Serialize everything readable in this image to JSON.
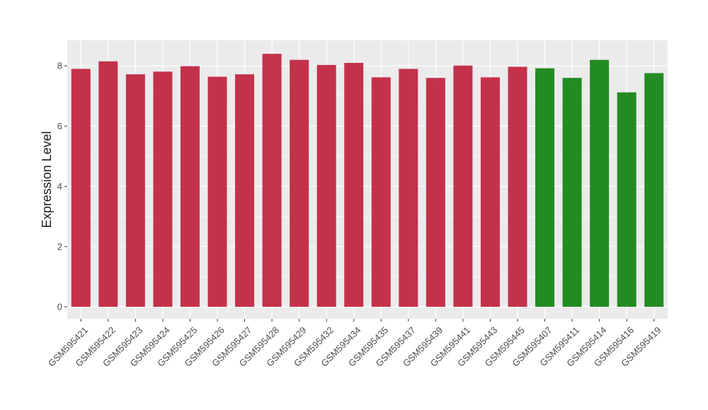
{
  "chart_data": {
    "type": "bar",
    "ylabel": "Expression Level",
    "xlabel": "",
    "ylim": [
      0,
      8.8
    ],
    "yticks": [
      0,
      2,
      4,
      6,
      8
    ],
    "grid": true,
    "panel_background": "#ebebeb",
    "grid_color": "#ffffff",
    "categories": [
      "GSM595421",
      "GSM595422",
      "GSM595423",
      "GSM595424",
      "GSM595425",
      "GSM595426",
      "GSM595427",
      "GSM595428",
      "GSM595429",
      "GSM595432",
      "GSM595434",
      "GSM595435",
      "GSM595437",
      "GSM595439",
      "GSM595441",
      "GSM595443",
      "GSM595445",
      "GSM595407",
      "GSM595411",
      "GSM595414",
      "GSM595416",
      "GSM595419"
    ],
    "values": [
      7.9,
      8.15,
      7.72,
      7.81,
      7.99,
      7.64,
      7.72,
      8.4,
      8.2,
      8.03,
      8.1,
      7.62,
      7.9,
      7.6,
      8.01,
      7.62,
      7.97,
      7.92,
      7.6,
      8.2,
      7.12,
      7.76
    ],
    "colors": [
      "#c4314b",
      "#c4314b",
      "#c4314b",
      "#c4314b",
      "#c4314b",
      "#c4314b",
      "#c4314b",
      "#c4314b",
      "#c4314b",
      "#c4314b",
      "#c4314b",
      "#c4314b",
      "#c4314b",
      "#c4314b",
      "#c4314b",
      "#c4314b",
      "#c4314b",
      "#228b22",
      "#228b22",
      "#228b22",
      "#228b22",
      "#228b22"
    ]
  }
}
